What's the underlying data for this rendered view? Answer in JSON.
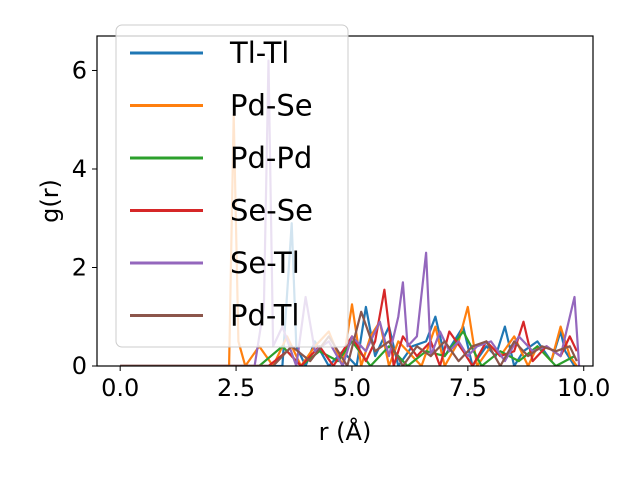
{
  "chart_data": {
    "type": "line",
    "xlabel": "r (Å)",
    "ylabel": "g(r)",
    "xlim": [
      -0.5,
      10.2
    ],
    "ylim": [
      0,
      6.7
    ],
    "xticks": [
      "0.0",
      "2.5",
      "5.0",
      "7.5",
      "10.0"
    ],
    "yticks": [
      "0",
      "2",
      "4",
      "6"
    ],
    "legend_position": "upper-left",
    "grid": false,
    "series": [
      {
        "name": "Tl-Tl",
        "color": "#1f77b4",
        "x": [
          0,
          2.4,
          3.0,
          3.5,
          3.7,
          3.8,
          4.0,
          4.2,
          4.5,
          4.8,
          5.1,
          5.3,
          5.5,
          5.8,
          6.0,
          6.3,
          6.6,
          6.8,
          7.0,
          7.2,
          7.4,
          7.6,
          7.9,
          8.1,
          8.3,
          8.5,
          8.7,
          9.0,
          9.3,
          9.5,
          9.6,
          9.8
        ],
        "y": [
          0,
          0,
          0,
          0,
          2.9,
          0.4,
          0,
          0.5,
          0,
          0.3,
          0,
          1.2,
          0.2,
          0.8,
          0,
          0.4,
          0.5,
          1.0,
          0.2,
          0.5,
          0.8,
          0,
          0.4,
          0.2,
          0.8,
          0,
          0.3,
          0.5,
          0.1,
          0.7,
          0.3,
          0
        ]
      },
      {
        "name": "Pd-Se",
        "color": "#ff7f0e",
        "x": [
          0,
          2.35,
          2.45,
          2.55,
          2.7,
          3.0,
          3.3,
          3.6,
          3.9,
          4.2,
          4.5,
          4.8,
          5.0,
          5.2,
          5.4,
          5.6,
          5.8,
          6.0,
          6.2,
          6.5,
          6.8,
          7.0,
          7.3,
          7.5,
          7.7,
          8.0,
          8.2,
          8.5,
          8.8,
          9.0,
          9.3,
          9.5,
          9.7,
          9.85
        ],
        "y": [
          0,
          0,
          5.1,
          0.5,
          0,
          0.4,
          0,
          0.6,
          0,
          0.4,
          0.7,
          0,
          1.25,
          0,
          0.6,
          0.9,
          0,
          0.5,
          0.3,
          0,
          0.8,
          0,
          0.5,
          1.2,
          0,
          0.4,
          0.2,
          0.6,
          0,
          0.4,
          0.1,
          0.8,
          0.2,
          0
        ]
      },
      {
        "name": "Pd-Pd",
        "color": "#2ca02c",
        "x": [
          0,
          3.0,
          3.5,
          3.9,
          4.3,
          4.7,
          5.0,
          5.4,
          5.8,
          6.2,
          6.6,
          7.0,
          7.4,
          7.8,
          8.2,
          8.6,
          9.0,
          9.4,
          9.8
        ],
        "y": [
          0,
          0,
          0.4,
          0,
          0.3,
          0.1,
          0.5,
          0,
          0.4,
          0,
          0.3,
          0.2,
          0.7,
          0,
          0.3,
          0.1,
          0.4,
          0,
          0.2
        ]
      },
      {
        "name": "Se-Se",
        "color": "#d62728",
        "x": [
          0,
          3.2,
          3.6,
          3.9,
          4.3,
          4.6,
          5.0,
          5.3,
          5.5,
          5.7,
          5.9,
          6.1,
          6.4,
          6.7,
          6.9,
          7.1,
          7.4,
          7.6,
          7.9,
          8.2,
          8.5,
          8.7,
          8.9,
          9.2,
          9.5,
          9.7,
          9.85
        ],
        "y": [
          0,
          0,
          0.3,
          0,
          0.4,
          0,
          0.6,
          0.1,
          0.5,
          1.55,
          0,
          0.6,
          0.2,
          0.5,
          0,
          0.7,
          0.3,
          0,
          0.5,
          0.2,
          0.3,
          0.9,
          0.1,
          0.4,
          0.2,
          0.6,
          0.3
        ]
      },
      {
        "name": "Se-Tl",
        "color": "#9467bd",
        "x": [
          0,
          2.9,
          3.1,
          3.2,
          3.3,
          3.5,
          3.8,
          4.0,
          4.2,
          4.5,
          4.8,
          5.0,
          5.3,
          5.6,
          5.8,
          6.0,
          6.1,
          6.2,
          6.4,
          6.6,
          6.7,
          6.9,
          7.1,
          7.3,
          7.5,
          7.7,
          8.0,
          8.3,
          8.6,
          8.9,
          9.2,
          9.5,
          9.7,
          9.8,
          9.9
        ],
        "y": [
          0,
          0,
          1.2,
          6.2,
          0.4,
          0.8,
          0,
          1.4,
          0.3,
          0.5,
          0,
          0.6,
          0.3,
          0.9,
          0.2,
          1.0,
          1.7,
          0.4,
          0.6,
          2.3,
          0.2,
          0.7,
          0.3,
          0.5,
          0.2,
          0.4,
          0.5,
          0.1,
          0.6,
          0.3,
          0.4,
          0.2,
          1.0,
          1.4,
          0
        ]
      },
      {
        "name": "Pd-Tl",
        "color": "#8c564b",
        "x": [
          0,
          3.3,
          3.7,
          4.1,
          4.5,
          4.9,
          5.2,
          5.5,
          5.8,
          6.1,
          6.4,
          6.7,
          7.0,
          7.3,
          7.6,
          7.9,
          8.2,
          8.5,
          8.8,
          9.1,
          9.4,
          9.7,
          9.85
        ],
        "y": [
          0,
          0,
          0.4,
          0.1,
          0.6,
          0,
          1.1,
          0.3,
          0.5,
          0,
          0.4,
          0.2,
          0.5,
          0.1,
          0.4,
          0.5,
          0,
          0.5,
          0.2,
          0.4,
          0.3,
          0.4,
          0.1
        ]
      }
    ]
  }
}
